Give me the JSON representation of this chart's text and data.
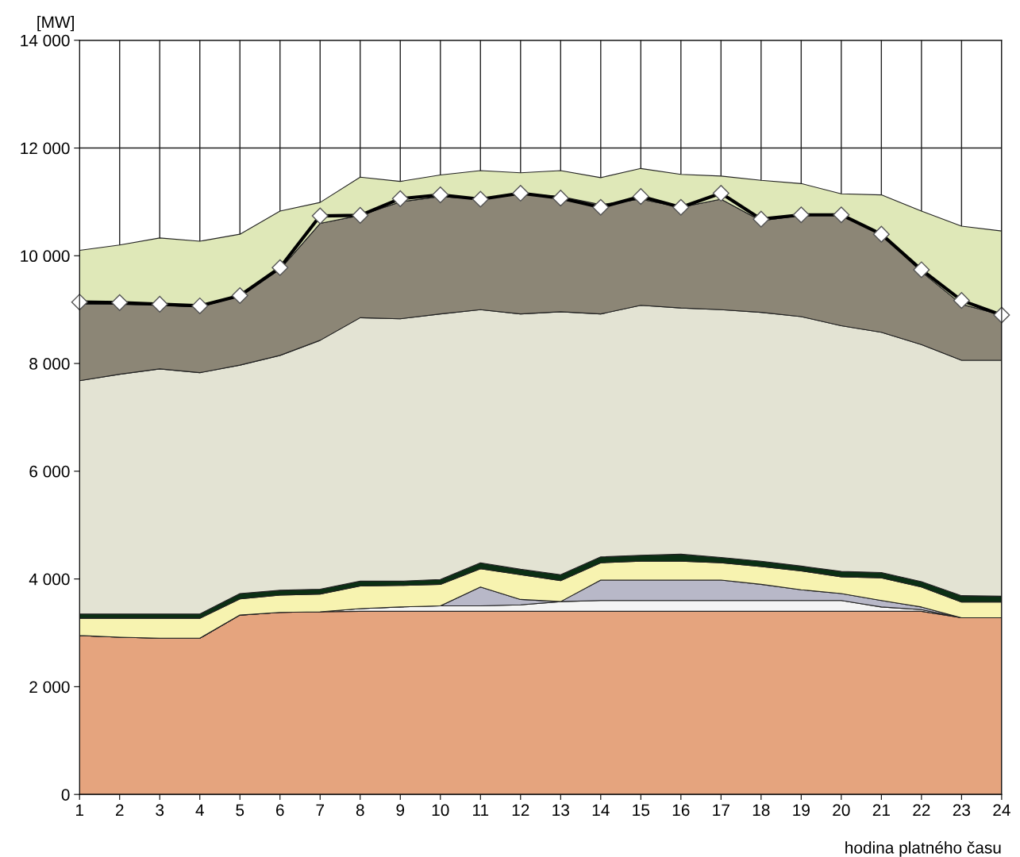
{
  "chart_data": {
    "type": "area",
    "stacked": true,
    "xlabel": "hodina platného času",
    "ylabel": "[MW]",
    "x": [
      1,
      2,
      3,
      4,
      5,
      6,
      7,
      8,
      9,
      10,
      11,
      12,
      13,
      14,
      15,
      16,
      17,
      18,
      19,
      20,
      21,
      22,
      23,
      24
    ],
    "xlim": [
      1,
      24
    ],
    "xticks": [
      1,
      2,
      3,
      4,
      5,
      6,
      7,
      8,
      9,
      10,
      11,
      12,
      13,
      14,
      15,
      16,
      17,
      18,
      19,
      20,
      21,
      22,
      23,
      24
    ],
    "ylim": [
      0,
      14000
    ],
    "yticks": [
      0,
      {
        "value": 2000,
        "label": "2 000"
      },
      {
        "value": 4000,
        "label": "4 000"
      },
      {
        "value": 6000,
        "label": "6 000"
      },
      {
        "value": 8000,
        "label": "8 000"
      },
      {
        "value": 10000,
        "label": "10 000"
      },
      {
        "value": 12000,
        "label": "12 000"
      },
      {
        "value": 14000,
        "label": "14 000"
      }
    ],
    "grid": true,
    "series": [
      {
        "color": "#e5a47e",
        "values": [
          2950,
          2920,
          2900,
          2900,
          3330,
          3380,
          3390,
          3400,
          3400,
          3400,
          3400,
          3400,
          3400,
          3400,
          3400,
          3400,
          3400,
          3400,
          3400,
          3400,
          3400,
          3400,
          3280,
          3280
        ]
      },
      {
        "color": "#f4f4f4",
        "values": [
          0,
          0,
          0,
          0,
          0,
          0,
          0,
          50,
          80,
          100,
          100,
          120,
          180,
          200,
          200,
          200,
          200,
          200,
          200,
          200,
          80,
          30,
          0,
          0
        ]
      },
      {
        "color": "#b8b8c8",
        "values": [
          0,
          0,
          0,
          0,
          0,
          0,
          0,
          0,
          0,
          0,
          350,
          100,
          0,
          380,
          380,
          380,
          380,
          300,
          200,
          130,
          120,
          50,
          0,
          0
        ]
      },
      {
        "color": "#f7f3b0",
        "values": [
          320,
          350,
          370,
          370,
          300,
          320,
          330,
          420,
          400,
          400,
          340,
          460,
          390,
          320,
          350,
          350,
          320,
          330,
          350,
          310,
          420,
          370,
          290,
          290
        ]
      },
      {
        "color": "#0b2f14",
        "values": [
          80,
          80,
          80,
          80,
          100,
          90,
          90,
          90,
          80,
          90,
          110,
          100,
          110,
          110,
          110,
          130,
          100,
          100,
          90,
          100,
          100,
          100,
          120,
          110
        ]
      },
      {
        "color": "#e3e3d3",
        "values": [
          4330,
          4450,
          4550,
          4480,
          4240,
          4360,
          4620,
          4890,
          4870,
          4930,
          4700,
          4740,
          4880,
          4510,
          4640,
          4570,
          4600,
          4620,
          4630,
          4560,
          4460,
          4400,
          4370,
          4380
        ]
      },
      {
        "color": "#8c8676",
        "values": [
          1420,
          1300,
          1180,
          1220,
          1280,
          1600,
          2170,
          1900,
          2170,
          2180,
          2050,
          2230,
          2140,
          2030,
          1970,
          1870,
          2050,
          1700,
          1880,
          2050,
          1820,
          1350,
          1040,
          840
        ]
      },
      {
        "color": "#dfe8b8",
        "values": [
          1000,
          1100,
          1250,
          1220,
          1150,
          1080,
          390,
          710,
          380,
          400,
          530,
          390,
          480,
          500,
          570,
          610,
          430,
          750,
          590,
          400,
          730,
          1130,
          1450,
          1560
        ]
      },
      {
        "type": "line",
        "color": "#000000",
        "marker": "diamond",
        "values": [
          9140,
          9130,
          9100,
          9070,
          9260,
          9780,
          10740,
          10750,
          11060,
          11130,
          11050,
          11160,
          11070,
          10900,
          11100,
          10900,
          11160,
          10680,
          10760,
          10760,
          10400,
          9740,
          9170,
          8900
        ]
      }
    ]
  }
}
